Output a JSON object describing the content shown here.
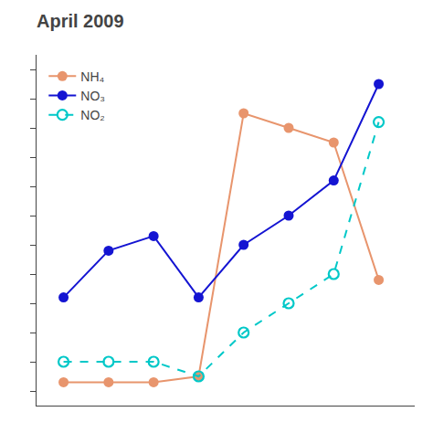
{
  "chart_data": {
    "type": "line",
    "title": "April 2009",
    "series": [
      {
        "name": "NH₄",
        "color": "#e8956d",
        "marker": "circle",
        "line_style": "solid",
        "x": [
          1,
          2,
          3,
          4,
          5,
          6,
          7,
          8
        ],
        "values": [
          0.3,
          0.3,
          0.3,
          0.5,
          9.5,
          9.0,
          8.5,
          3.8
        ]
      },
      {
        "name": "NO₃",
        "color": "#1414d2",
        "marker": "circle",
        "line_style": "solid",
        "x": [
          1,
          2,
          3,
          4,
          5,
          6,
          7,
          8
        ],
        "values": [
          3.2,
          4.8,
          5.3,
          3.2,
          5.0,
          6.0,
          7.2,
          10.5
        ]
      },
      {
        "name": "NO₂",
        "color": "#00c8c8",
        "marker": "circle-open",
        "line_style": "dashed",
        "x": [
          1,
          2,
          3,
          4,
          5,
          6,
          7,
          8
        ],
        "values": [
          1.0,
          1.0,
          1.0,
          0.5,
          2.0,
          3.0,
          4.0,
          9.2
        ]
      }
    ],
    "xlim": [
      0.4,
      8.8
    ],
    "ylim": [
      -0.5,
      11.5
    ],
    "yticks": [
      0,
      1,
      2,
      3,
      4,
      5,
      6,
      7,
      8,
      9,
      10,
      11
    ],
    "tick_labels": false,
    "grid": false,
    "legend": "upper left"
  }
}
